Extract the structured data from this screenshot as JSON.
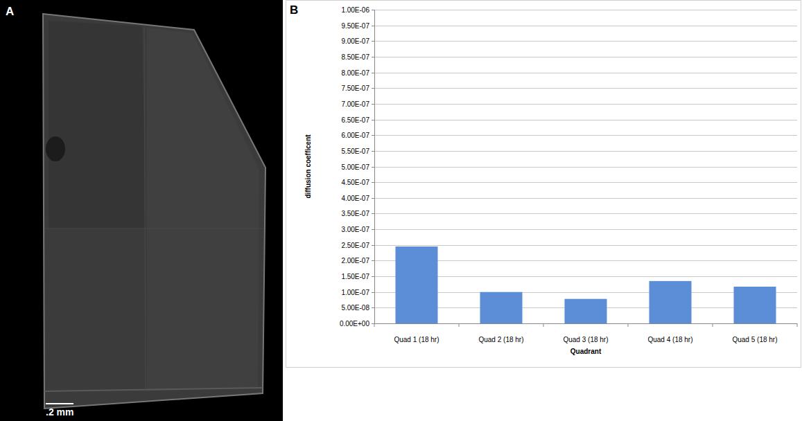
{
  "panels": {
    "a": {
      "letter": "A",
      "scale_bar_label": ".2 mm"
    },
    "b": {
      "letter": "B"
    }
  },
  "chart_data": {
    "type": "bar",
    "x_label": "Quadrant",
    "y_label": "diffusion coefficent",
    "categories": [
      "Quad 1 (18 hr)",
      "Quad 2 (18 hr)",
      "Quad 3 (18 hr)",
      "Quad 4 (18 hr)",
      "Quad 5 (18 hr)"
    ],
    "values": [
      2.45e-07,
      1e-07,
      7.8e-08,
      1.35e-07,
      1.17e-07
    ],
    "color": "#5b8ed6",
    "ylim": [
      0,
      1e-06
    ],
    "yticks": [
      {
        "value": 0,
        "label": "0.00E+00"
      },
      {
        "value": 5e-08,
        "label": "5.00E-08"
      },
      {
        "value": 1e-07,
        "label": "1.00E-07"
      },
      {
        "value": 1.5e-07,
        "label": "1.50E-07"
      },
      {
        "value": 2e-07,
        "label": "2.00E-07"
      },
      {
        "value": 2.5e-07,
        "label": "2.50E-07"
      },
      {
        "value": 3e-07,
        "label": "3.00E-07"
      },
      {
        "value": 3.5e-07,
        "label": "3.50E-07"
      },
      {
        "value": 4e-07,
        "label": "4.00E-07"
      },
      {
        "value": 4.5e-07,
        "label": "4.50E-07"
      },
      {
        "value": 5e-07,
        "label": "5.00E-07"
      },
      {
        "value": 5.5e-07,
        "label": "5.50E-07"
      },
      {
        "value": 6e-07,
        "label": "6.00E-07"
      },
      {
        "value": 6.5e-07,
        "label": "6.50E-07"
      },
      {
        "value": 7e-07,
        "label": "7.00E-07"
      },
      {
        "value": 7.5e-07,
        "label": "7.50E-07"
      },
      {
        "value": 8e-07,
        "label": "8.00E-07"
      },
      {
        "value": 8.5e-07,
        "label": "8.50E-07"
      },
      {
        "value": 9e-07,
        "label": "9.00E-07"
      },
      {
        "value": 9.5e-07,
        "label": "9.50E-07"
      },
      {
        "value": 1e-06,
        "label": "1.00E-06"
      }
    ],
    "grid": true
  }
}
